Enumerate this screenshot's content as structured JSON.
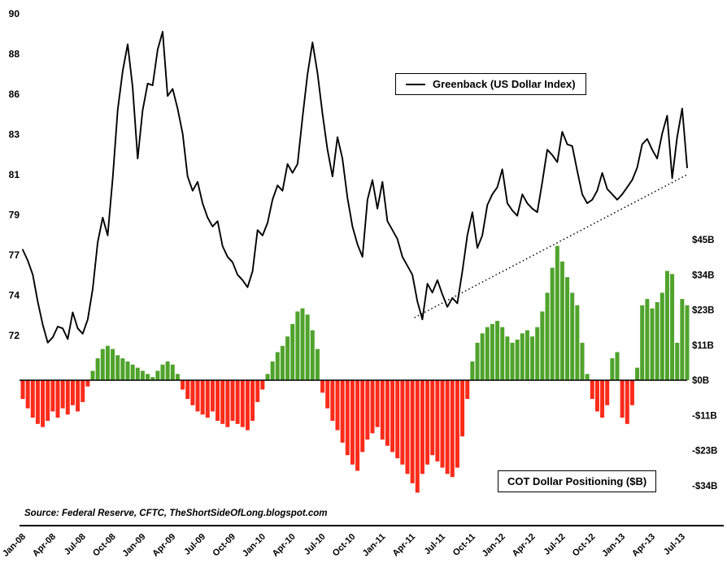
{
  "legend": {
    "greenback_label": "Greenback (US Dollar Index)"
  },
  "cot_label": "COT Dollar Positioning ($B)",
  "source": "Source: Federal Reserve, CFTC, TheShortSideOfLong.blogspot.com",
  "colors": {
    "line": "#000000",
    "positive_bar": "#4fa32b",
    "negative_bar": "#fb2b1a",
    "axis_text": "#000000"
  },
  "chart_data": {
    "type": "combo",
    "title": "",
    "x_ticks": [
      "Jan-08",
      "Apr-08",
      "Jul-08",
      "Oct-08",
      "Jan-09",
      "Apr-09",
      "Jul-09",
      "Oct-09",
      "Jan-10",
      "Apr-10",
      "Jul-10",
      "Oct-10",
      "Jan-11",
      "Apr-11",
      "Jul-11",
      "Oct-11",
      "Jan-12",
      "Apr-12",
      "Jul-12",
      "Oct-12",
      "Jan-13",
      "Apr-13",
      "Jul-13"
    ],
    "x_tick_month_step": 3,
    "months_span": 66.5,
    "left_axis": {
      "range": [
        72,
        90
      ],
      "ticks": [
        {
          "value": 90,
          "label": "90"
        },
        {
          "value": 87.75,
          "label": "88"
        },
        {
          "value": 85.5,
          "label": "86"
        },
        {
          "value": 83.25,
          "label": "83"
        },
        {
          "value": 81,
          "label": "81"
        },
        {
          "value": 78.75,
          "label": "79"
        },
        {
          "value": 76.5,
          "label": "77"
        },
        {
          "value": 74.25,
          "label": "74"
        },
        {
          "value": 72,
          "label": "72"
        }
      ]
    },
    "right_axis": {
      "range": [
        -33.75,
        45
      ],
      "ticks": [
        {
          "value": 45,
          "label": "$45B"
        },
        {
          "value": 33.75,
          "label": "$34B"
        },
        {
          "value": 22.5,
          "label": "$23B"
        },
        {
          "value": 11.25,
          "label": "$11B"
        },
        {
          "value": 0,
          "label": "$0B"
        },
        {
          "value": -11.25,
          "label": "-$11B"
        },
        {
          "value": -22.5,
          "label": "-$23B"
        },
        {
          "value": -33.75,
          "label": "-$34B"
        }
      ]
    },
    "series": [
      {
        "name": "Greenback (US Dollar Index)",
        "type": "line",
        "axis": "left",
        "values": [
          76.8,
          76.2,
          75.4,
          73.9,
          72.6,
          71.6,
          71.9,
          72.5,
          72.4,
          71.8,
          73.3,
          72.4,
          72.1,
          72.9,
          74.6,
          77.2,
          78.6,
          77.6,
          80.8,
          84.6,
          86.8,
          88.3,
          85.9,
          81.9,
          84.6,
          86.1,
          86.0,
          88.0,
          89.0,
          85.4,
          85.8,
          84.7,
          83.3,
          80.9,
          80.1,
          80.6,
          79.4,
          78.6,
          78.1,
          78.4,
          77.0,
          76.4,
          76.1,
          75.4,
          75.1,
          74.7,
          75.6,
          77.9,
          77.6,
          78.3,
          79.6,
          80.4,
          80.1,
          81.6,
          81.1,
          81.6,
          84.2,
          86.6,
          88.4,
          86.7,
          84.4,
          82.4,
          80.9,
          83.1,
          81.9,
          79.7,
          78.1,
          77.1,
          76.4,
          79.6,
          80.7,
          79.1,
          80.6,
          78.4,
          77.9,
          77.4,
          76.4,
          75.9,
          75.4,
          73.9,
          72.9,
          74.9,
          74.4,
          75.1,
          74.3,
          73.6,
          74.1,
          73.8,
          75.6,
          77.6,
          78.9,
          76.9,
          77.6,
          79.3,
          79.9,
          80.3,
          81.3,
          79.4,
          79.0,
          78.7,
          79.9,
          79.4,
          79.1,
          78.9,
          80.6,
          82.4,
          82.1,
          81.7,
          83.4,
          82.7,
          82.6,
          81.2,
          79.9,
          79.4,
          79.6,
          80.1,
          81.1,
          80.2,
          79.9,
          79.6,
          79.9,
          80.3,
          80.7,
          81.4,
          82.7,
          83.0,
          82.4,
          81.9,
          83.3,
          84.3,
          80.8,
          83.1,
          84.7,
          81.4
        ]
      },
      {
        "name": "COT Dollar Positioning ($B)",
        "type": "bar",
        "axis": "right",
        "values": [
          -6,
          -9,
          -12,
          -14,
          -15,
          -13,
          -10,
          -12,
          -9,
          -11,
          -8,
          -10,
          -7,
          -2,
          3,
          7,
          10,
          11,
          10,
          8,
          7,
          6,
          5,
          4,
          3,
          2,
          1,
          3,
          5,
          6,
          5,
          2,
          -3,
          -6,
          -8,
          -10,
          -11,
          -12,
          -10,
          -13,
          -14,
          -15,
          -13,
          -14,
          -15,
          -16,
          -13,
          -7,
          -3,
          2,
          6,
          9,
          11,
          14,
          18,
          22,
          23,
          21,
          16,
          10,
          -4,
          -9,
          -13,
          -16,
          -20,
          -24,
          -27,
          -29,
          -23,
          -19,
          -17,
          -15,
          -19,
          -21,
          -23,
          -25,
          -27,
          -30,
          -33,
          -36,
          -30,
          -27,
          -24,
          -26,
          -28,
          -30,
          -31,
          -28,
          -18,
          -6,
          6,
          12,
          15,
          17,
          18,
          19,
          17,
          14,
          12,
          13,
          15,
          16,
          14,
          17,
          22,
          28,
          36,
          43,
          38,
          33,
          28,
          24,
          12,
          2,
          -6,
          -10,
          -12,
          -8,
          7,
          9,
          -12,
          -14,
          -8,
          4,
          24,
          26,
          23,
          25,
          28,
          35,
          34,
          12,
          26,
          24
        ]
      }
    ],
    "trendline": {
      "style": "dotted",
      "from": {
        "month": 39.2,
        "value": 73.0
      },
      "to": {
        "month": 66.5,
        "value": 81.0
      }
    }
  }
}
